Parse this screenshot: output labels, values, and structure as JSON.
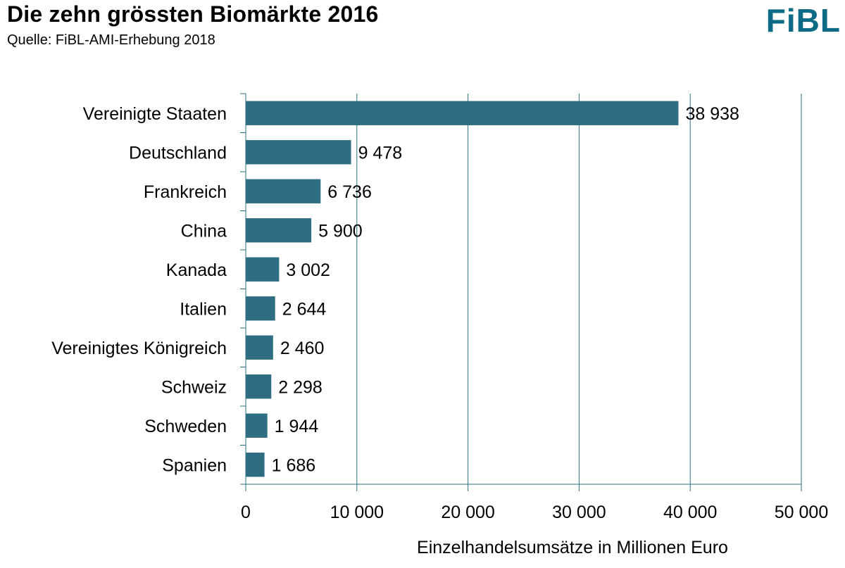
{
  "header": {
    "title": "Die zehn grössten Biomärkte 2016",
    "source": "Quelle: FiBL-AMI-Erhebung 2018",
    "logo_text": "FiBL"
  },
  "colors": {
    "bar": "#2f6d82",
    "grid": "#2f6d82",
    "logo": "#0d6b86"
  },
  "chart_data": {
    "type": "bar",
    "orientation": "horizontal",
    "title": "Die zehn grössten Biomärkte 2016",
    "xlabel": "Einzelhandelsumsätze in Millionen Euro",
    "ylabel": "",
    "xlim": [
      0,
      50000
    ],
    "grid": true,
    "categories": [
      "Vereinigte Staaten",
      "Deutschland",
      "Frankreich",
      "China",
      "Kanada",
      "Italien",
      "Vereinigtes Königreich",
      "Schweiz",
      "Schweden",
      "Spanien"
    ],
    "values": [
      38938,
      9478,
      6736,
      5900,
      3002,
      2644,
      2460,
      2298,
      1944,
      1686
    ],
    "value_labels": [
      "38 938",
      "9 478",
      "6 736",
      "5 900",
      "3 002",
      "2 644",
      "2 460",
      "2 298",
      "1 944",
      "1 686"
    ],
    "ticks": [
      0,
      10000,
      20000,
      30000,
      40000,
      50000
    ],
    "tick_labels": [
      "0",
      "10 000",
      "20 000",
      "30 000",
      "40 000",
      "50 000"
    ]
  }
}
